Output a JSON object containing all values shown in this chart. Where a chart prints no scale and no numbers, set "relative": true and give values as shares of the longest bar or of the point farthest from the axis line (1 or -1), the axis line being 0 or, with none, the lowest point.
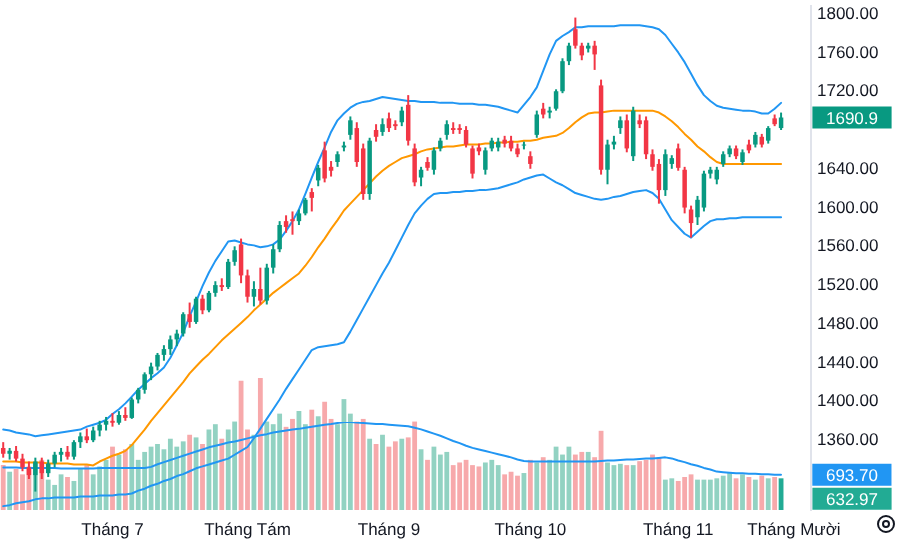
{
  "chart_data": [
    {
      "type": "candlestick",
      "categories": [
        null,
        null,
        null,
        null,
        null,
        null,
        null,
        null,
        null,
        null,
        null,
        null,
        null,
        null,
        null,
        null,
        null,
        "Tháng 7",
        null,
        null,
        null,
        null,
        null,
        null,
        null,
        null,
        null,
        null,
        null,
        null,
        null,
        null,
        null,
        null,
        null,
        null,
        null,
        null,
        "Tháng Tám",
        null,
        null,
        null,
        null,
        null,
        null,
        null,
        null,
        null,
        null,
        null,
        null,
        null,
        null,
        null,
        null,
        null,
        null,
        null,
        null,
        null,
        "Tháng 9",
        null,
        null,
        null,
        null,
        null,
        null,
        null,
        null,
        null,
        null,
        null,
        null,
        null,
        null,
        null,
        null,
        null,
        null,
        null,
        null,
        null,
        "Tháng 10",
        null,
        null,
        null,
        null,
        null,
        null,
        null,
        null,
        null,
        null,
        null,
        null,
        null,
        null,
        null,
        null,
        null,
        null,
        null,
        null,
        null,
        null,
        "Tháng 11",
        null,
        null,
        null,
        null,
        null,
        null,
        null,
        null,
        null,
        null,
        null,
        null,
        null,
        null,
        null,
        null,
        null,
        "Tháng Mười",
        null,
        null
      ],
      "ohlc": [
        [
          1350,
          1356,
          1340,
          1344
        ],
        [
          1344,
          1350,
          1338,
          1347
        ],
        [
          1347,
          1352,
          1336,
          1339
        ],
        [
          1339,
          1344,
          1326,
          1330
        ],
        [
          1330,
          1336,
          1318,
          1322
        ],
        [
          1322,
          1340,
          1305,
          1336
        ],
        [
          1336,
          1340,
          1318,
          1324
        ],
        [
          1324,
          1338,
          1320,
          1334
        ],
        [
          1334,
          1346,
          1330,
          1343
        ],
        [
          1343,
          1350,
          1336,
          1346
        ],
        [
          1346,
          1352,
          1338,
          1341
        ],
        [
          1341,
          1358,
          1338,
          1356
        ],
        [
          1356,
          1366,
          1350,
          1362
        ],
        [
          1362,
          1370,
          1355,
          1358
        ],
        [
          1358,
          1372,
          1356,
          1368
        ],
        [
          1368,
          1378,
          1362,
          1374
        ],
        [
          1374,
          1382,
          1368,
          1378
        ],
        [
          1378,
          1386,
          1372,
          1376
        ],
        [
          1376,
          1388,
          1374,
          1384
        ],
        [
          1384,
          1392,
          1378,
          1381
        ],
        [
          1381,
          1402,
          1380,
          1400
        ],
        [
          1400,
          1412,
          1396,
          1410
        ],
        [
          1410,
          1428,
          1406,
          1426
        ],
        [
          1426,
          1438,
          1420,
          1434
        ],
        [
          1434,
          1448,
          1430,
          1446
        ],
        [
          1446,
          1456,
          1440,
          1452
        ],
        [
          1452,
          1466,
          1446,
          1462
        ],
        [
          1462,
          1472,
          1455,
          1468
        ],
        [
          1468,
          1490,
          1465,
          1488
        ],
        [
          1488,
          1500,
          1474,
          1480
        ],
        [
          1480,
          1506,
          1478,
          1504
        ],
        [
          1504,
          1508,
          1488,
          1492
        ],
        [
          1492,
          1512,
          1490,
          1510
        ],
        [
          1510,
          1522,
          1506,
          1518
        ],
        [
          1518,
          1525,
          1512,
          1516
        ],
        [
          1516,
          1545,
          1514,
          1542
        ],
        [
          1542,
          1558,
          1538,
          1554
        ],
        [
          1560,
          1566,
          1520,
          1528
        ],
        [
          1528,
          1534,
          1500,
          1506
        ],
        [
          1506,
          1522,
          1496,
          1514
        ],
        [
          1514,
          1536,
          1498,
          1502
        ],
        [
          1502,
          1540,
          1498,
          1536
        ],
        [
          1536,
          1560,
          1530,
          1555
        ],
        [
          1555,
          1584,
          1552,
          1580
        ],
        [
          1584,
          1590,
          1572,
          1578
        ],
        [
          1586,
          1594,
          1570,
          1584
        ],
        [
          1584,
          1596,
          1580,
          1592
        ],
        [
          1592,
          1608,
          1590,
          1606
        ],
        [
          1614,
          1618,
          1594,
          1608
        ],
        [
          1626,
          1642,
          1620,
          1639
        ],
        [
          1657,
          1666,
          1624,
          1628
        ],
        [
          1640,
          1646,
          1630,
          1636
        ],
        [
          1645,
          1656,
          1640,
          1653
        ],
        [
          1660,
          1666,
          1656,
          1662
        ],
        [
          1673,
          1692,
          1668,
          1688
        ],
        [
          1680,
          1686,
          1640,
          1645
        ],
        [
          1659,
          1664,
          1606,
          1612
        ],
        [
          1612,
          1670,
          1606,
          1667
        ],
        [
          1678,
          1684,
          1666,
          1671
        ],
        [
          1676,
          1690,
          1672,
          1684
        ],
        [
          1690,
          1696,
          1676,
          1680
        ],
        [
          1684,
          1688,
          1678,
          1682
        ],
        [
          1686,
          1702,
          1682,
          1698
        ],
        [
          1704,
          1714,
          1662,
          1667
        ],
        [
          1659,
          1664,
          1620,
          1624
        ],
        [
          1629,
          1640,
          1620,
          1637
        ],
        [
          1645,
          1650,
          1636,
          1639
        ],
        [
          1637,
          1660,
          1632,
          1657
        ],
        [
          1659,
          1670,
          1656,
          1667
        ],
        [
          1673,
          1688,
          1668,
          1684
        ],
        [
          1680,
          1686,
          1674,
          1678
        ],
        [
          1680,
          1684,
          1674,
          1678
        ],
        [
          1678,
          1682,
          1660,
          1663
        ],
        [
          1659,
          1662,
          1628,
          1633
        ],
        [
          1660,
          1664,
          1652,
          1656
        ],
        [
          1637,
          1660,
          1632,
          1657
        ],
        [
          1659,
          1670,
          1656,
          1667
        ],
        [
          1660,
          1670,
          1656,
          1666
        ],
        [
          1668,
          1672,
          1660,
          1664
        ],
        [
          1667,
          1672,
          1656,
          1659
        ],
        [
          1659,
          1664,
          1650,
          1653
        ],
        [
          1662,
          1666,
          1658,
          1663
        ],
        [
          1651,
          1656,
          1638,
          1643
        ],
        [
          1673,
          1698,
          1670,
          1694
        ],
        [
          1700,
          1706,
          1690,
          1694
        ],
        [
          1696,
          1702,
          1690,
          1698
        ],
        [
          1700,
          1720,
          1698,
          1718
        ],
        [
          1718,
          1752,
          1716,
          1749
        ],
        [
          1749,
          1768,
          1745,
          1765
        ],
        [
          1782,
          1794,
          1762,
          1765
        ],
        [
          1765,
          1768,
          1750,
          1755
        ],
        [
          1762,
          1768,
          1758,
          1765
        ],
        [
          1765,
          1770,
          1740,
          1756
        ],
        [
          1724,
          1730,
          1632,
          1637
        ],
        [
          1637,
          1668,
          1622,
          1663
        ],
        [
          1663,
          1672,
          1658,
          1666
        ],
        [
          1680,
          1692,
          1674,
          1688
        ],
        [
          1688,
          1694,
          1655,
          1659
        ],
        [
          1651,
          1702,
          1646,
          1698
        ],
        [
          1688,
          1694,
          1680,
          1684
        ],
        [
          1688,
          1692,
          1648,
          1653
        ],
        [
          1653,
          1658,
          1636,
          1640
        ],
        [
          1643,
          1648,
          1602,
          1616
        ],
        [
          1616,
          1658,
          1610,
          1653
        ],
        [
          1643,
          1652,
          1638,
          1649
        ],
        [
          1659,
          1664,
          1636,
          1639
        ],
        [
          1637,
          1640,
          1592,
          1598
        ],
        [
          1596,
          1600,
          1567,
          1582
        ],
        [
          1588,
          1610,
          1580,
          1606
        ],
        [
          1598,
          1636,
          1594,
          1633
        ],
        [
          1633,
          1640,
          1628,
          1637
        ],
        [
          1627,
          1640,
          1622,
          1637
        ],
        [
          1643,
          1656,
          1640,
          1653
        ],
        [
          1653,
          1662,
          1650,
          1659
        ],
        [
          1659,
          1662,
          1648,
          1651
        ],
        [
          1645,
          1658,
          1642,
          1655
        ],
        [
          1663,
          1668,
          1654,
          1657
        ],
        [
          1663,
          1676,
          1660,
          1673
        ],
        [
          1671,
          1674,
          1660,
          1663
        ],
        [
          1667,
          1682,
          1664,
          1680
        ],
        [
          1690,
          1694,
          1682,
          1684
        ],
        [
          1680,
          1696,
          1678,
          1690.9
        ],
        null,
        null,
        null,
        null
      ],
      "colors": [
        "#f23645",
        "#089981",
        "#f23645",
        "#f23645",
        "#f23645",
        "#089981",
        "#f23645",
        "#089981",
        "#089981",
        "#089981",
        "#f23645",
        "#089981",
        "#089981",
        "#f23645",
        "#089981",
        "#089981",
        "#089981",
        "#f23645",
        "#089981",
        "#f23645",
        "#089981",
        "#089981",
        "#089981",
        "#089981",
        "#089981",
        "#089981",
        "#089981",
        "#089981",
        "#089981",
        "#f23645",
        "#089981",
        "#f23645",
        "#089981",
        "#089981",
        "#f23645",
        "#089981",
        "#089981",
        "#f23645",
        "#f23645",
        "#089981",
        "#f23645",
        "#089981",
        "#089981",
        "#089981",
        "#f23645",
        "#f23645",
        "#089981",
        "#089981",
        "#f23645",
        "#089981",
        "#f23645",
        "#f23645",
        "#089981",
        "#089981",
        "#089981",
        "#f23645",
        "#f23645",
        "#089981",
        "#f23645",
        "#089981",
        "#f23645",
        "#f23645",
        "#089981",
        "#f23645",
        "#f23645",
        "#089981",
        "#f23645",
        "#089981",
        "#089981",
        "#089981",
        "#f23645",
        "#f23645",
        "#f23645",
        "#f23645",
        "#f23645",
        "#089981",
        "#089981",
        "#089981",
        "#f23645",
        "#f23645",
        "#f23645",
        "#089981",
        "#f23645",
        "#089981",
        "#f23645",
        "#089981",
        "#089981",
        "#089981",
        "#089981",
        "#f23645",
        "#f23645",
        "#089981",
        "#f23645",
        "#f23645",
        "#089981",
        "#089981",
        "#089981",
        "#f23645",
        "#089981",
        "#f23645",
        "#f23645",
        "#f23645",
        "#f23645",
        "#089981",
        "#089981",
        "#f23645",
        "#f23645",
        "#f23645",
        "#089981",
        "#089981",
        "#089981",
        "#089981",
        "#089981",
        "#089981",
        "#f23645",
        "#089981",
        "#f23645",
        "#089981",
        "#f23645",
        "#089981",
        "#f23645",
        "#089981",
        null,
        null,
        null,
        null
      ],
      "ylim": [
        1286,
        1808
      ],
      "yticks": [
        {
          "value": 1360,
          "label": "1360.00"
        },
        {
          "value": 1400,
          "label": "1400.00"
        },
        {
          "value": 1440,
          "label": "1440.00"
        },
        {
          "value": 1480,
          "label": "1480.00"
        },
        {
          "value": 1520,
          "label": "1520.00"
        },
        {
          "value": 1560,
          "label": "1560.00"
        },
        {
          "value": 1600,
          "label": "1600.00"
        },
        {
          "value": 1640,
          "label": "1640.00"
        },
        {
          "value": 1720,
          "label": "1720.00"
        },
        {
          "value": 1760,
          "label": "1760.00"
        },
        {
          "value": 1800,
          "label": "1800.00"
        }
      ],
      "annotations": [
        "1690.9"
      ],
      "series": [
        {
          "type": "line",
          "color": "#2196f3",
          "values": [
            1369,
            1368,
            1366,
            1365,
            1364,
            1362,
            1363,
            1364,
            1365,
            1366,
            1367,
            1368,
            1369,
            1372,
            1374,
            1376,
            1379,
            1385,
            1390,
            1396,
            1403,
            1410,
            1416,
            1422,
            1427,
            1433,
            1443,
            1456,
            1469,
            1486,
            1501,
            1517,
            1531,
            1543,
            1553,
            1563,
            1564,
            1562,
            1560,
            1559,
            1557,
            1558,
            1560,
            1565,
            1574,
            1584,
            1596,
            1612,
            1629,
            1645,
            1660,
            1676,
            1688,
            1695,
            1701,
            1705,
            1707,
            1708,
            1710,
            1712,
            1711,
            1710,
            1709,
            1708,
            1708,
            1707,
            1707,
            1707,
            1706,
            1706,
            1706,
            1705,
            1705,
            1705,
            1704,
            1704,
            1703,
            1702,
            1700,
            1698,
            1696,
            1704,
            1712,
            1722,
            1739,
            1756,
            1770,
            1775,
            1779,
            1784,
            1784,
            1785,
            1785,
            1785,
            1785,
            1785,
            1786,
            1786,
            1786,
            1786,
            1785,
            1784,
            1782,
            1776,
            1767,
            1758,
            1748,
            1736,
            1724,
            1714,
            1708,
            1703,
            1701,
            1700,
            1699,
            1698,
            1698,
            1697,
            1695,
            1695,
            1700,
            1706,
            null,
            null,
            null,
            null
          ]
        },
        {
          "type": "line",
          "color": "#ff9800",
          "values": [
            1336,
            1336,
            1336,
            1335,
            1335,
            1335,
            1335,
            1334,
            1334,
            1334,
            1334,
            1333,
            1333,
            1333,
            1332,
            1336,
            1339,
            1342,
            1344,
            1347,
            1353,
            1361,
            1369,
            1378,
            1386,
            1394,
            1402,
            1410,
            1418,
            1427,
            1434,
            1441,
            1447,
            1454,
            1461,
            1467,
            1473,
            1479,
            1485,
            1492,
            1498,
            1504,
            1510,
            1515,
            1520,
            1525,
            1530,
            1538,
            1547,
            1557,
            1566,
            1576,
            1585,
            1595,
            1602,
            1609,
            1616,
            1623,
            1630,
            1636,
            1641,
            1645,
            1649,
            1651,
            1653,
            1656,
            1658,
            1659,
            1660,
            1661,
            1661,
            1662,
            1663,
            1663,
            1663,
            1664,
            1664,
            1665,
            1665,
            1666,
            1666,
            1667,
            1667,
            1668,
            1670,
            1671,
            1672,
            1675,
            1680,
            1686,
            1691,
            1695,
            1696,
            1696,
            1697,
            1698,
            1698,
            1698,
            1698,
            1698,
            1698,
            1698,
            1696,
            1692,
            1687,
            1681,
            1674,
            1668,
            1661,
            1656,
            1650,
            1645,
            1643,
            1643,
            1643,
            1643,
            1643,
            1643,
            1643,
            1643,
            1643,
            1643,
            null,
            null,
            null,
            null
          ]
        },
        {
          "type": "line",
          "color": "#2196f3",
          "values": [
            1290,
            1291,
            1293,
            1294,
            1295,
            1297,
            1298,
            1298,
            1299,
            1299,
            1299,
            1299,
            1300,
            1300,
            1300,
            1301,
            1301,
            1301,
            1302,
            1302,
            1303,
            1306,
            1308,
            1311,
            1313,
            1316,
            1318,
            1321,
            1323,
            1326,
            1329,
            1331,
            1333,
            1335,
            1337,
            1339,
            1343,
            1347,
            1351,
            1360,
            1370,
            1380,
            1390,
            1400,
            1411,
            1421,
            1431,
            1441,
            1451,
            1454,
            1455,
            1456,
            1457,
            1459,
            1470,
            1482,
            1494,
            1506,
            1518,
            1530,
            1541,
            1554,
            1567,
            1580,
            1592,
            1600,
            1607,
            1612,
            1613,
            1613,
            1614,
            1614,
            1615,
            1615,
            1616,
            1616,
            1617,
            1618,
            1620,
            1622,
            1624,
            1627,
            1629,
            1631,
            1632,
            1628,
            1624,
            1621,
            1617,
            1613,
            1611,
            1609,
            1607,
            1606,
            1607,
            1609,
            1610,
            1612,
            1614,
            1615,
            1616,
            1613,
            1607,
            1596,
            1585,
            1578,
            1571,
            1567,
            1573,
            1579,
            1584,
            1586,
            1586,
            1587,
            1587,
            1588,
            1588,
            1588,
            1588,
            1588,
            1588,
            1588,
            null,
            null,
            null,
            null
          ]
        }
      ]
    },
    {
      "type": "bar",
      "relative": true,
      "categories": [
        null,
        null,
        null,
        null,
        null,
        null,
        null,
        null,
        null,
        null,
        null,
        null,
        null,
        null,
        null,
        null,
        null,
        null,
        null,
        null,
        null,
        null,
        null,
        null,
        null,
        null,
        null,
        null,
        null,
        null,
        null,
        null,
        null,
        null,
        null,
        null,
        null,
        null,
        null,
        null,
        null,
        null,
        null,
        null,
        null,
        null,
        null,
        null,
        null,
        null,
        null,
        null,
        null,
        null,
        null,
        null,
        null,
        null,
        null,
        null,
        null,
        null,
        null,
        null,
        null,
        null,
        null,
        null,
        null,
        null,
        null,
        null,
        null,
        null,
        null,
        null,
        null,
        null,
        null,
        null,
        null,
        null,
        null,
        null,
        null,
        null,
        null,
        null,
        null,
        null,
        null,
        null,
        null,
        null,
        null,
        null,
        null,
        null,
        null,
        null,
        null,
        null,
        null,
        null,
        null,
        null,
        null,
        null,
        null,
        null,
        null,
        null,
        null,
        null,
        null,
        null,
        null,
        null,
        null,
        null,
        null,
        null,
        null,
        null,
        null,
        null
      ],
      "annotations": [
        "632.97"
      ],
      "values": [
        0.34,
        0.29,
        0.31,
        0.27,
        0.33,
        0.36,
        0.38,
        0.23,
        0.19,
        0.27,
        0.25,
        0.22,
        0.31,
        0.34,
        0.27,
        0.33,
        0.38,
        0.48,
        0.42,
        0.46,
        0.5,
        0.38,
        0.44,
        0.48,
        0.5,
        0.46,
        0.54,
        0.48,
        0.52,
        0.57,
        0.55,
        0.5,
        0.61,
        0.65,
        0.54,
        0.61,
        0.67,
        0.98,
        0.61,
        0.57,
        1,
        0.67,
        0.65,
        0.73,
        0.63,
        0.69,
        0.75,
        0.65,
        0.76,
        0.71,
        0.82,
        0.69,
        0.65,
        0.84,
        0.73,
        0.67,
        0.69,
        0.54,
        0.5,
        0.57,
        0.48,
        0.52,
        0.54,
        0.55,
        0.67,
        0.46,
        0.38,
        0.48,
        0.42,
        0.44,
        0.34,
        0.36,
        0.38,
        0.34,
        0.33,
        0.36,
        0.38,
        0.34,
        0.27,
        0.29,
        0.26,
        0.28,
        0.38,
        0.36,
        0.4,
        0.38,
        0.48,
        0.42,
        0.48,
        0.42,
        0.44,
        0.44,
        0.4,
        0.6,
        0.36,
        0.34,
        0.35,
        0.34,
        0.34,
        0.37,
        0.38,
        0.42,
        0.4,
        0.23,
        0.24,
        0.22,
        0.25,
        0.27,
        0.23,
        0.23,
        0.23,
        0.24,
        0.26,
        0.28,
        0.24,
        0.27,
        0.25,
        0.23,
        0.26,
        0.24,
        0.25,
        0.24,
        null,
        null,
        null,
        null
      ],
      "colors": [
        "#f7a9ab",
        "#92d2c2",
        "#f7a9ab",
        "#f7a9ab",
        "#f7a9ab",
        "#92d2c2",
        "#f7a9ab",
        "#92d2c2",
        "#92d2c2",
        "#92d2c2",
        "#f7a9ab",
        "#92d2c2",
        "#92d2c2",
        "#f7a9ab",
        "#92d2c2",
        "#92d2c2",
        "#92d2c2",
        "#f7a9ab",
        "#92d2c2",
        "#f7a9ab",
        "#92d2c2",
        "#92d2c2",
        "#92d2c2",
        "#92d2c2",
        "#92d2c2",
        "#92d2c2",
        "#92d2c2",
        "#92d2c2",
        "#92d2c2",
        "#f7a9ab",
        "#92d2c2",
        "#f7a9ab",
        "#92d2c2",
        "#92d2c2",
        "#f7a9ab",
        "#92d2c2",
        "#92d2c2",
        "#f7a9ab",
        "#f7a9ab",
        "#92d2c2",
        "#f7a9ab",
        "#92d2c2",
        "#92d2c2",
        "#92d2c2",
        "#f7a9ab",
        "#f7a9ab",
        "#92d2c2",
        "#92d2c2",
        "#f7a9ab",
        "#92d2c2",
        "#f7a9ab",
        "#f7a9ab",
        "#92d2c2",
        "#92d2c2",
        "#92d2c2",
        "#f7a9ab",
        "#f7a9ab",
        "#92d2c2",
        "#f7a9ab",
        "#92d2c2",
        "#f7a9ab",
        "#f7a9ab",
        "#92d2c2",
        "#f7a9ab",
        "#f7a9ab",
        "#92d2c2",
        "#f7a9ab",
        "#92d2c2",
        "#92d2c2",
        "#92d2c2",
        "#f7a9ab",
        "#f7a9ab",
        "#f7a9ab",
        "#f7a9ab",
        "#f7a9ab",
        "#92d2c2",
        "#92d2c2",
        "#92d2c2",
        "#f7a9ab",
        "#f7a9ab",
        "#f7a9ab",
        "#92d2c2",
        "#f7a9ab",
        "#92d2c2",
        "#f7a9ab",
        "#92d2c2",
        "#92d2c2",
        "#92d2c2",
        "#92d2c2",
        "#f7a9ab",
        "#f7a9ab",
        "#92d2c2",
        "#f7a9ab",
        "#f7a9ab",
        "#92d2c2",
        "#92d2c2",
        "#92d2c2",
        "#f7a9ab",
        "#92d2c2",
        "#f7a9ab",
        "#f7a9ab",
        "#f7a9ab",
        "#f7a9ab",
        "#92d2c2",
        "#92d2c2",
        "#f7a9ab",
        "#f7a9ab",
        "#f7a9ab",
        "#92d2c2",
        "#92d2c2",
        "#92d2c2",
        "#92d2c2",
        "#92d2c2",
        "#92d2c2",
        "#f7a9ab",
        "#92d2c2",
        "#f7a9ab",
        "#92d2c2",
        "#f7a9ab",
        "#92d2c2",
        "#f7a9ab",
        "#22ab94",
        null,
        null,
        null,
        null
      ]
    },
    {
      "type": "line",
      "relative": true,
      "color": "#2196f3",
      "categories": [
        null,
        null,
        null,
        null,
        null,
        null,
        null,
        null,
        null,
        null,
        null,
        null,
        null,
        null,
        null,
        null,
        null,
        null,
        null,
        null,
        null,
        null,
        null,
        null,
        null,
        null,
        null,
        null,
        null,
        null,
        null,
        null,
        null,
        null,
        null,
        null,
        null,
        null,
        null,
        null,
        null,
        null,
        null,
        null,
        null,
        null,
        null,
        null,
        null,
        null,
        null,
        null,
        null,
        null,
        null,
        null,
        null,
        null,
        null,
        null,
        null,
        null,
        null,
        null,
        null,
        null,
        null,
        null,
        null,
        null,
        null,
        null,
        null,
        null,
        null,
        null,
        null,
        null,
        null,
        null,
        null,
        null,
        null,
        null,
        null,
        null,
        null,
        null,
        null,
        null,
        null,
        null,
        null,
        null,
        null,
        null,
        null,
        null,
        null,
        null,
        null,
        null,
        null,
        null,
        null,
        null,
        null,
        null,
        null,
        null,
        null,
        null,
        null,
        null,
        null,
        null,
        null,
        null,
        null,
        null,
        null,
        null,
        null,
        null,
        null,
        null
      ],
      "annotations": [
        "693.70"
      ],
      "values": [
        0.14,
        0.14,
        0.14,
        0.13,
        0.13,
        0.13,
        0.13,
        0.13,
        0.13,
        0.12,
        0.12,
        0.12,
        0.12,
        0.12,
        0.12,
        0.13,
        0.13,
        0.13,
        0.13,
        0.13,
        0.13,
        0.13,
        0.13,
        0.15,
        0.2,
        0.24,
        0.28,
        0.32,
        0.36,
        0.4,
        0.44,
        0.48,
        0.52,
        0.55,
        0.58,
        0.61,
        0.63,
        0.66,
        0.69,
        0.72,
        0.75,
        0.77,
        0.8,
        0.82,
        0.84,
        0.86,
        0.87,
        0.89,
        0.91,
        0.93,
        0.95,
        0.96,
        0.98,
        1,
        1,
        0.99,
        0.98,
        0.97,
        0.96,
        0.96,
        0.95,
        0.94,
        0.93,
        0.92,
        0.89,
        0.86,
        0.82,
        0.78,
        0.74,
        0.69,
        0.64,
        0.6,
        0.55,
        0.51,
        0.48,
        0.45,
        0.42,
        0.39,
        0.36,
        0.33,
        0.29,
        0.26,
        0.25,
        0.25,
        0.25,
        0.25,
        0.25,
        0.25,
        0.25,
        0.25,
        0.25,
        0.25,
        0.25,
        0.26,
        0.27,
        0.27,
        0.28,
        0.29,
        0.29,
        0.3,
        0.31,
        0.31,
        0.32,
        0.33,
        0.31,
        0.27,
        0.24,
        0.2,
        0.17,
        0.13,
        0.1,
        0.06,
        0.05,
        0.04,
        0.03,
        0.03,
        0.02,
        0.02,
        0.01,
        0.01,
        0,
        0,
        null,
        null,
        null,
        null
      ]
    }
  ]
}
